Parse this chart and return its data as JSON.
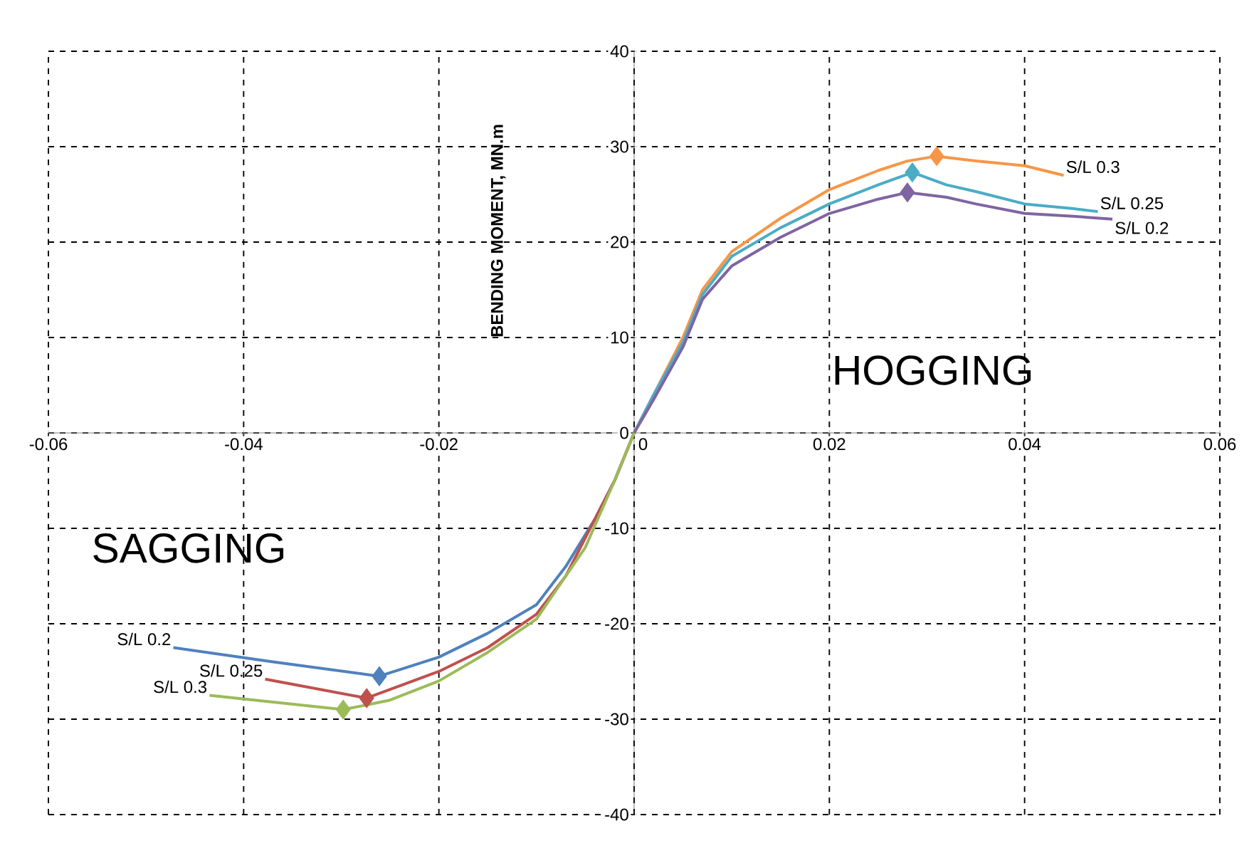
{
  "chart_data": {
    "type": "line",
    "ylabel": "BENDING MOMENT, MN.m",
    "annotations": [
      "HOGGING",
      "SAGGING"
    ],
    "xlim": [
      -0.06,
      0.06
    ],
    "ylim": [
      -40,
      40
    ],
    "xticks": [
      -0.06,
      -0.04,
      -0.02,
      0,
      0.02,
      0.04,
      0.06
    ],
    "yticks": [
      -40,
      -30,
      -20,
      -10,
      0,
      10,
      20,
      30,
      40
    ],
    "grid": true,
    "marker": "none",
    "series": [
      {
        "name": "S/L 0.3",
        "color": "#f79646",
        "x": [
          0,
          0.002,
          0.005,
          0.007,
          0.01,
          0.015,
          0.02,
          0.025,
          0.028,
          0.031,
          0.035,
          0.04,
          0.044
        ],
        "values": [
          0,
          4,
          10,
          15,
          19,
          22.5,
          25.5,
          27.5,
          28.5,
          29,
          28.5,
          28,
          27
        ]
      },
      {
        "name": "S/L 0.25",
        "color": "#4bacc6",
        "x": [
          0,
          0.002,
          0.005,
          0.007,
          0.01,
          0.015,
          0.02,
          0.025,
          0.0285,
          0.032,
          0.035,
          0.04,
          0.045,
          0.0475
        ],
        "values": [
          0,
          4,
          9.5,
          14.5,
          18.5,
          21.5,
          24,
          26,
          27.3,
          26,
          25.3,
          24,
          23.5,
          23.2
        ]
      },
      {
        "name": "S/L 0.2",
        "color": "#8064a2",
        "x": [
          0,
          0.002,
          0.005,
          0.007,
          0.01,
          0.015,
          0.02,
          0.025,
          0.028,
          0.032,
          0.035,
          0.04,
          0.045,
          0.049
        ],
        "values": [
          0,
          3.5,
          9,
          14,
          17.5,
          20.5,
          23,
          24.5,
          25.2,
          24.7,
          24,
          23,
          22.7,
          22.4
        ]
      },
      {
        "name": "S/L 0.2",
        "color": "#4f81bd",
        "x": [
          -0.0472,
          -0.037,
          -0.0261,
          -0.02,
          -0.015,
          -0.01,
          -0.007,
          -0.004,
          -0.002,
          0
        ],
        "values": [
          -22.5,
          -24,
          -25.5,
          -23.5,
          -21,
          -18,
          -14,
          -9,
          -5,
          0
        ]
      },
      {
        "name": "S/L 0.25",
        "color": "#c0504d",
        "x": [
          -0.0378,
          -0.0274,
          -0.02,
          -0.015,
          -0.01,
          -0.007,
          -0.005,
          -0.002,
          0
        ],
        "values": [
          -25.8,
          -27.8,
          -25,
          -22.5,
          -19,
          -15,
          -11,
          -5,
          0
        ]
      },
      {
        "name": "S/L 0.3",
        "color": "#9bbb59",
        "x": [
          -0.0435,
          -0.0298,
          -0.025,
          -0.02,
          -0.015,
          -0.01,
          -0.007,
          -0.005,
          -0.002,
          0
        ],
        "values": [
          -27.5,
          -29,
          -28,
          -26,
          -23,
          -19.5,
          -15,
          -12,
          -5,
          0
        ]
      },
      {
        "type": "scatter",
        "marker": "diamond",
        "color": "#f79646",
        "x": [
          0.031
        ],
        "values": [
          29
        ]
      },
      {
        "type": "scatter",
        "marker": "diamond",
        "color": "#4bacc6",
        "x": [
          0.0285
        ],
        "values": [
          27.3
        ]
      },
      {
        "type": "scatter",
        "marker": "diamond",
        "color": "#8064a2",
        "x": [
          0.028
        ],
        "values": [
          25.2
        ]
      },
      {
        "type": "scatter",
        "marker": "diamond",
        "color": "#4f81bd",
        "x": [
          -0.0261
        ],
        "values": [
          -25.5
        ]
      },
      {
        "type": "scatter",
        "marker": "diamond",
        "color": "#c0504d",
        "x": [
          -0.0274
        ],
        "values": [
          -27.8
        ]
      },
      {
        "type": "scatter",
        "marker": "diamond",
        "color": "#9bbb59",
        "x": [
          -0.0298
        ],
        "values": [
          -29
        ]
      }
    ]
  }
}
